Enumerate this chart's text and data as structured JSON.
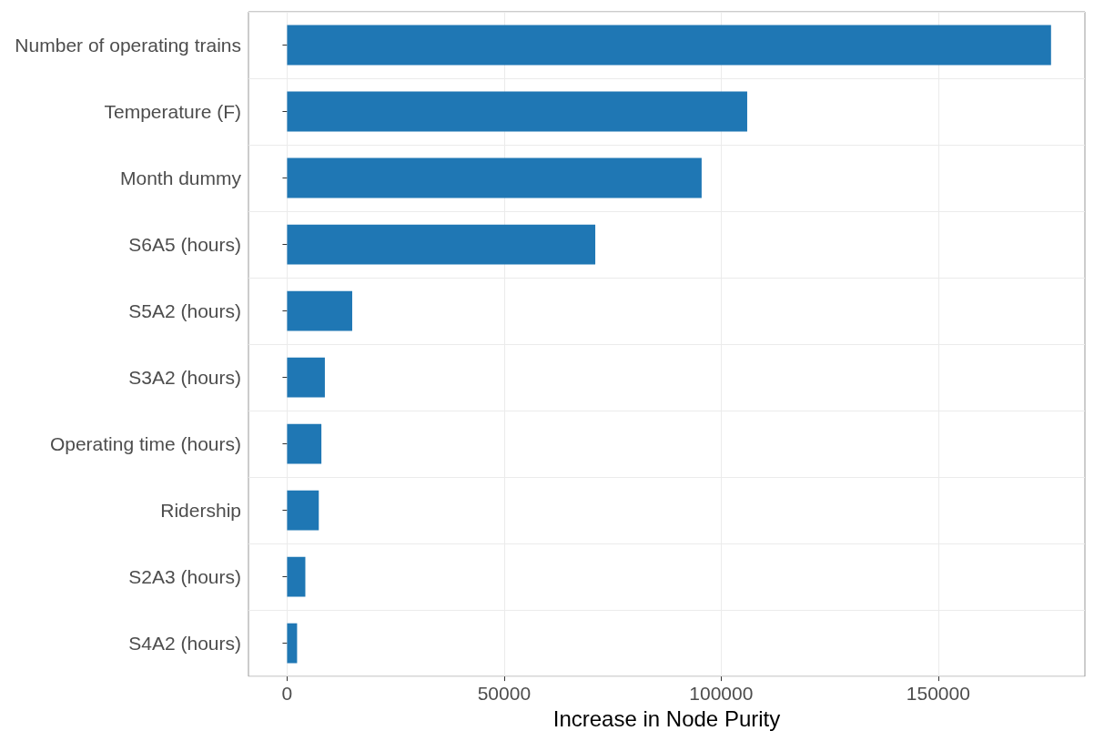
{
  "chart_data": {
    "type": "bar",
    "orientation": "horizontal",
    "xlabel": "Increase in Node Purity",
    "categories": [
      "Number of operating trains",
      "Temperature (F)",
      "Month dummy",
      "S6A5 (hours)",
      "S5A2 (hours)",
      "S3A2 (hours)",
      "Operating time (hours)",
      "Ridership",
      "S2A3 (hours)",
      "S4A2 (hours)"
    ],
    "values": [
      176000,
      106000,
      95500,
      71000,
      15000,
      8700,
      7900,
      7300,
      4200,
      2300
    ],
    "color": "#1f77b4",
    "xlim": [
      -8900,
      183800
    ],
    "xticks": [
      0,
      50000,
      100000,
      150000
    ],
    "grid": true
  }
}
